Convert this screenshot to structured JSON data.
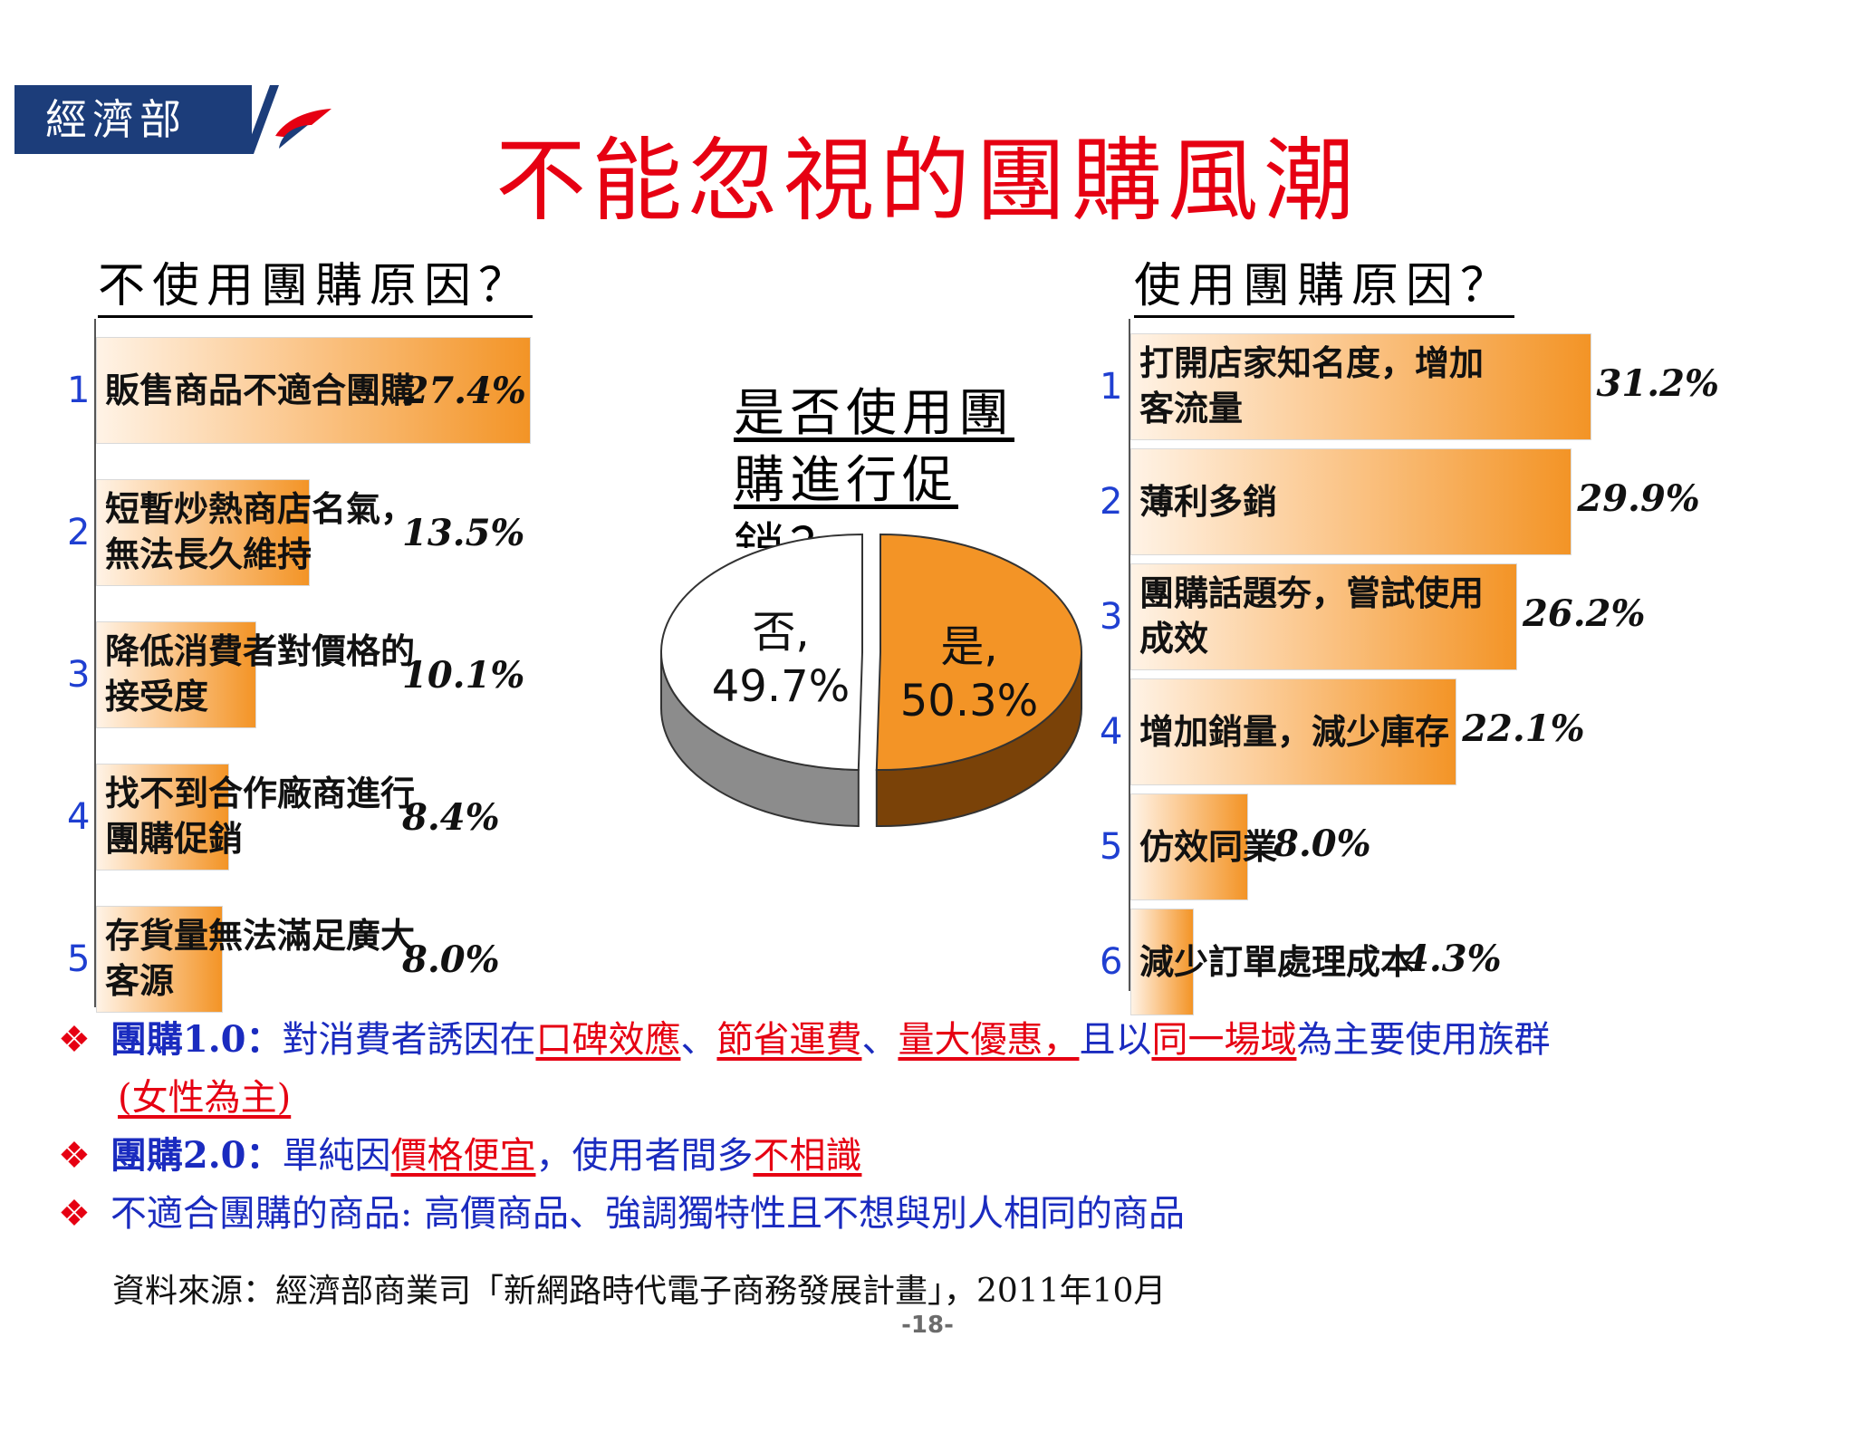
{
  "header": {
    "org_name": "經濟部",
    "title": "不能忽視的團購風潮"
  },
  "left": {
    "heading": "不使用團購原因？",
    "items": [
      {
        "num": "1",
        "line1": "販售商品不適合團購",
        "line2": "",
        "value": 27.4,
        "pct": "27.4%"
      },
      {
        "num": "2",
        "line1": "短暫炒熱商店名氣，",
        "line2": "無法長久維持",
        "value": 13.5,
        "pct": "13.5%"
      },
      {
        "num": "3",
        "line1": "降低消費者對價格的",
        "line2": "接受度",
        "value": 10.1,
        "pct": "10.1%"
      },
      {
        "num": "4",
        "line1": "找不到合作廠商進行",
        "line2": "團購促銷",
        "value": 8.4,
        "pct": "8.4%"
      },
      {
        "num": "5",
        "line1": "存貨量無法滿足廣大",
        "line2": "客源",
        "value": 8.0,
        "pct": "8.0%"
      }
    ]
  },
  "right": {
    "heading": "使用團購原因？",
    "items": [
      {
        "num": "1",
        "line1": "打開店家知名度，增加",
        "line2": "客流量",
        "value": 31.2,
        "pct": "31.2%"
      },
      {
        "num": "2",
        "line1": "薄利多銷",
        "line2": "",
        "value": 29.9,
        "pct": "29.9%"
      },
      {
        "num": "3",
        "line1": "團購話題夯，嘗試使用",
        "line2": "成效",
        "value": 26.2,
        "pct": "26.2%"
      },
      {
        "num": "4",
        "line1": "增加銷量，減少庫存",
        "line2": "",
        "value": 22.1,
        "pct": "22.1%"
      },
      {
        "num": "5",
        "line1": "仿效同業",
        "line2": "",
        "value": 8.0,
        "pct": "8.0%"
      },
      {
        "num": "6",
        "line1": "減少訂單處理成本",
        "line2": "",
        "value": 4.3,
        "pct": "4.3%"
      }
    ]
  },
  "pie": {
    "question_line1": "是否使用團",
    "question_line2": "購進行促",
    "question_line3": "銷？",
    "no_label": "否,",
    "no_value_text": "49.7%",
    "no_value": 49.7,
    "yes_label": "是,",
    "yes_value_text": "50.3%",
    "yes_value": 50.3
  },
  "chart_data": [
    {
      "type": "bar",
      "title": "不使用團購原因？",
      "categories": [
        "販售商品不適合團購",
        "短暫炒熱商店名氣，無法長久維持",
        "降低消費者對價格的接受度",
        "找不到合作廠商進行團購促銷",
        "存貨量無法滿足廣大客源"
      ],
      "values": [
        27.4,
        13.5,
        10.1,
        8.4,
        8.0
      ]
    },
    {
      "type": "pie",
      "title": "是否使用團購進行促銷？",
      "categories": [
        "否",
        "是"
      ],
      "values": [
        49.7,
        50.3
      ]
    },
    {
      "type": "bar",
      "title": "使用團購原因？",
      "categories": [
        "打開店家知名度，增加客流量",
        "薄利多銷",
        "團購話題夯，嘗試使用成效",
        "增加銷量，減少庫存",
        "仿效同業",
        "減少訂單處理成本"
      ],
      "values": [
        31.2,
        29.9,
        26.2,
        22.1,
        8.0,
        4.3
      ]
    }
  ],
  "bullets": {
    "b1": {
      "head": "團購1.0：",
      "t1": "對消費者誘因在",
      "u1": "口碑效應",
      "s1": "、",
      "u2": "節省運費",
      "s2": "、",
      "u3": "量大優惠，",
      "t2": "且以",
      "u4": "同一場域",
      "t3": "為主要使用族群",
      "u5": "(女性為主)"
    },
    "b2": {
      "head": "團購2.0：",
      "t1": "單純因",
      "u1": "價格便宜",
      "t2": "，使用者間多",
      "u2": "不相識"
    },
    "b3": {
      "text": "不適合團購的商品: 高價商品、強調獨特性且不想與別人相同的商品"
    },
    "mark": "❖"
  },
  "footer": {
    "source": "資料來源：經濟部商業司「新網路時代電子商務發展計畫」，2011年10月",
    "page": "-18-"
  },
  "colors": {
    "title_red": "#e60012",
    "bar_orange": "#f39426",
    "bullet_blue": "#1a2bbf",
    "logo_blue": "#1c3d7a"
  }
}
